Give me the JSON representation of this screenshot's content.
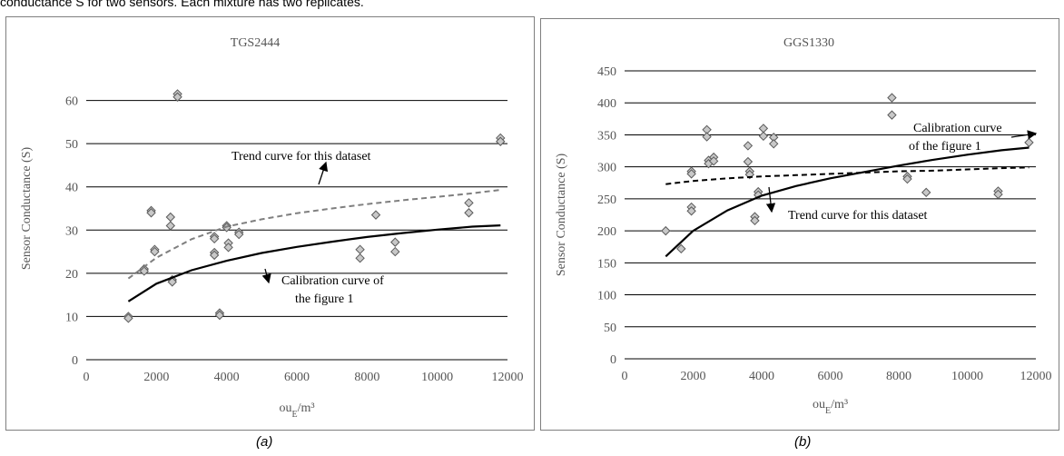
{
  "header": {
    "text": "conductance S for two sensors. Each mixture has two replicates."
  },
  "chart_data": [
    {
      "type": "scatter",
      "title": "TGS2444",
      "xlabel": "ouE/m³",
      "ylabel": "Sensor Conductance (S)",
      "xlim": [
        0,
        12000
      ],
      "ylim": [
        0,
        70
      ],
      "xticks": [
        0,
        2000,
        4000,
        6000,
        8000,
        10000,
        12000
      ],
      "yticks": [
        0,
        10,
        20,
        30,
        40,
        50,
        60
      ],
      "grid": "horizontal",
      "points": {
        "x": [
          1200,
          1200,
          1650,
          1650,
          1850,
          1850,
          1950,
          1950,
          2400,
          2400,
          2450,
          2450,
          2600,
          2600,
          3650,
          3650,
          3650,
          3650,
          3800,
          3800,
          4000,
          4000,
          4050,
          4050,
          4350,
          4350,
          7800,
          7800,
          8250,
          8800,
          8800,
          10900,
          10900,
          11800,
          11800
        ],
        "y": [
          10,
          9.6,
          21,
          20.5,
          34.5,
          34,
          25.5,
          25,
          33,
          31,
          18.5,
          18,
          61.5,
          60.8,
          28.5,
          28,
          24.8,
          24.2,
          10.8,
          10.3,
          31,
          30.6,
          27,
          26,
          29.5,
          29,
          25.5,
          23.5,
          33.5,
          27.2,
          25,
          36.3,
          34,
          51.3,
          50.5
        ]
      },
      "curves": [
        {
          "name": "Trend curve for this dataset",
          "style": "dashed",
          "color": "#7f7f7f",
          "x": [
            1200,
            2000,
            3000,
            4000,
            5000,
            6000,
            7000,
            8000,
            9000,
            10000,
            11000,
            11800
          ],
          "y": [
            18.8,
            23.6,
            27.9,
            30.8,
            32.5,
            33.9,
            35.0,
            36.0,
            36.9,
            37.7,
            38.5,
            39.3
          ]
        },
        {
          "name": "Calibration curve of the figure 1",
          "style": "solid",
          "color": "#000000",
          "x": [
            1200,
            2000,
            3000,
            4000,
            5000,
            6000,
            7000,
            8000,
            9000,
            10000,
            11000,
            11800
          ],
          "y": [
            13.5,
            17.6,
            20.7,
            22.9,
            24.7,
            26.1,
            27.3,
            28.4,
            29.3,
            30.1,
            30.8,
            31.1
          ]
        }
      ],
      "annotations": [
        {
          "lines": [
            "Trend curve for this dataset"
          ]
        },
        {
          "lines": [
            "Calibration curve of",
            "the figure  1"
          ]
        }
      ],
      "caption": "(a)"
    },
    {
      "type": "scatter",
      "title": "GGS1330",
      "xlabel": "ouE/m³",
      "ylabel": "Sensor Conductance (S)",
      "xlim": [
        0,
        12000
      ],
      "ylim": [
        0,
        450
      ],
      "xticks": [
        0,
        2000,
        4000,
        6000,
        8000,
        10000,
        12000
      ],
      "yticks": [
        0,
        50,
        100,
        150,
        200,
        250,
        300,
        350,
        400,
        450
      ],
      "grid": "horizontal",
      "points": {
        "x": [
          1200,
          1650,
          1950,
          1950,
          1950,
          1950,
          2400,
          2400,
          2450,
          2450,
          2600,
          2600,
          3600,
          3600,
          3650,
          3650,
          3800,
          3800,
          3900,
          3900,
          4050,
          4050,
          4350,
          4350,
          7800,
          7800,
          8250,
          8250,
          8800,
          10900,
          10900,
          11800
        ],
        "y": [
          200,
          172,
          293,
          289,
          237,
          231,
          358,
          347,
          310,
          305,
          315,
          309,
          333,
          308,
          293,
          288,
          222,
          216,
          261,
          256,
          360,
          348,
          346,
          336,
          408,
          381,
          285,
          281,
          260,
          262,
          257,
          338
        ]
      },
      "curves": [
        {
          "name": "Trend curve for this dataset",
          "style": "dashed",
          "color": "#000000",
          "x": [
            1200,
            2000,
            3000,
            4000,
            5000,
            6000,
            7000,
            8000,
            9000,
            10000,
            11000,
            11800
          ],
          "y": [
            273,
            278,
            282,
            285,
            287,
            289,
            291,
            293,
            294,
            296,
            298,
            299
          ]
        },
        {
          "name": "Calibration curve of the figure 1",
          "style": "solid",
          "color": "#000000",
          "x": [
            1200,
            2000,
            3000,
            4000,
            5000,
            6000,
            7000,
            8000,
            9000,
            10000,
            11000,
            11800
          ],
          "y": [
            160,
            200,
            232,
            255,
            270,
            282,
            292,
            302,
            311,
            319,
            326,
            330
          ]
        }
      ],
      "annotations": [
        {
          "lines": [
            "Calibration  curve",
            "of the figure  1"
          ]
        },
        {
          "lines": [
            "Trend curve for this dataset"
          ]
        }
      ],
      "caption": "(b)"
    }
  ],
  "style": {
    "marker_fill": "#c8c8c8",
    "marker_stroke": "#5a5a5a",
    "grid_color": "#000000",
    "axis_text_color": "#555555"
  }
}
